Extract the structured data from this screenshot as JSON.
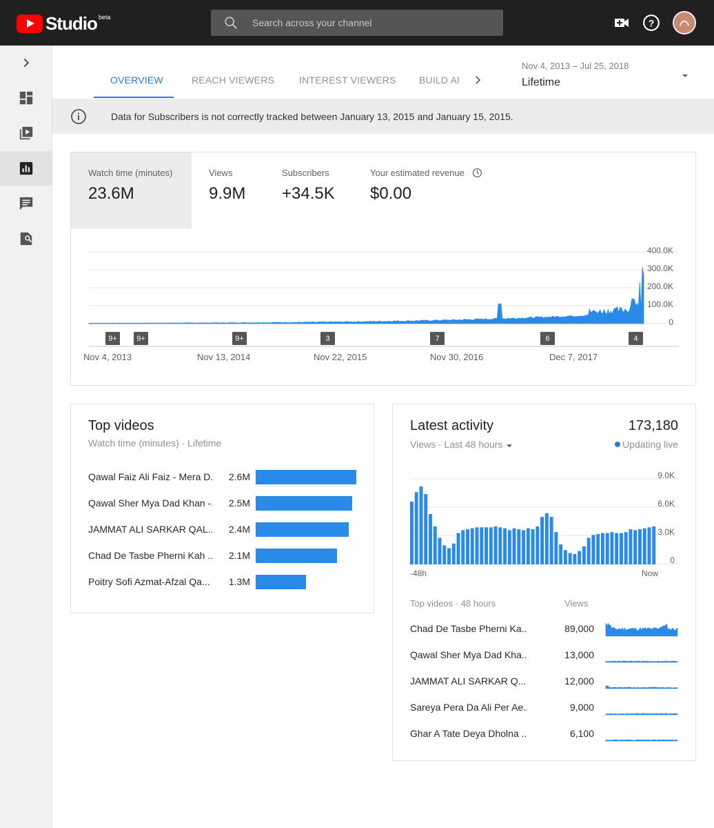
{
  "app": {
    "name": "Studio",
    "badge": "beta"
  },
  "search": {
    "placeholder": "Search across your channel"
  },
  "tabs": [
    "OVERVIEW",
    "REACH VIEWERS",
    "INTEREST VIEWERS",
    "BUILD AN"
  ],
  "date_range": {
    "range": "Nov 4, 2013 – Jul 25, 2018",
    "label": "Lifetime"
  },
  "banner": {
    "text": "Data for Subscribers is not correctly tracked between January 13, 2015 and January 15, 2015."
  },
  "metrics": [
    {
      "label": "Watch time (minutes)",
      "value": "23.6M"
    },
    {
      "label": "Views",
      "value": "9.9M"
    },
    {
      "label": "Subscribers",
      "value": "+34.5K"
    },
    {
      "label": "Your estimated revenue",
      "value": "$0.00"
    }
  ],
  "main_chart": {
    "y_ticks": [
      "400.0K",
      "300.0K",
      "200.0K",
      "100.0K",
      "0"
    ],
    "x_ticks": [
      "Nov 4, 2013",
      "Nov 13, 2014",
      "Nov 22, 2015",
      "Nov 30, 2016",
      "Dec 7, 2017"
    ],
    "markers": [
      "9+",
      "9+",
      "9+",
      "3",
      "7",
      "6",
      "4"
    ]
  },
  "top_videos": {
    "title": "Top videos",
    "subtitle": "Watch time (minutes) · Lifetime",
    "rows": [
      {
        "title": "Qawal Faiz Ali Faiz - Mera D...",
        "value": "2.6M",
        "num": 2.6
      },
      {
        "title": "Qawal Sher Mya Dad Khan -...",
        "value": "2.5M",
        "num": 2.5
      },
      {
        "title": "JAMMAT ALI SARKAR QAL...",
        "value": "2.4M",
        "num": 2.4
      },
      {
        "title": "Chad De Tasbe Pherni Kah ...",
        "value": "2.1M",
        "num": 2.1
      },
      {
        "title": "Poitry Sofi Azmat-Afzal Qa...",
        "value": "1.3M",
        "num": 1.3
      }
    ]
  },
  "latest": {
    "title": "Latest activity",
    "total": "173,180",
    "subtitle": "Views · Last 48 hours",
    "live": "Updating live",
    "y_ticks": [
      "9.0K",
      "6.0K",
      "3.0K",
      "0"
    ],
    "x_start": "-48h",
    "x_end": "Now",
    "bars": [
      6.6,
      7.6,
      8.2,
      7.4,
      5.3,
      4.0,
      2.8,
      2.0,
      1.7,
      2.2,
      3.3,
      3.6,
      3.7,
      3.8,
      3.9,
      3.9,
      3.9,
      3.9,
      4.0,
      3.9,
      3.8,
      3.6,
      3.8,
      3.7,
      3.6,
      3.8,
      3.7,
      4.0,
      5.0,
      5.4,
      5.0,
      3.4,
      2.1,
      1.5,
      1.2,
      1.1,
      1.4,
      1.9,
      2.8,
      3.1,
      3.2,
      3.3,
      3.3,
      3.4,
      3.3,
      3.3,
      3.4,
      3.7,
      3.6,
      3.7,
      3.8,
      3.9,
      4.0
    ],
    "table_header": {
      "col1": "Top videos · 48 hours",
      "col2": "Views"
    },
    "rows": [
      {
        "title": "Chad De Tasbe Pherni Ka...",
        "value": "89,000"
      },
      {
        "title": "Qawal Sher Mya Dad Kha...",
        "value": "13,000"
      },
      {
        "title": "JAMMAT ALI SARKAR Q...",
        "value": "12,000"
      },
      {
        "title": "Sareya Pera Da Ali Per Ae...",
        "value": "9,000"
      },
      {
        "title": "Ghar A Tate Deya Dholna ...",
        "value": "6,100"
      }
    ]
  },
  "colors": {
    "accent": "#1e7de0",
    "bar": "#2a8ae8",
    "topbar": "#202020"
  }
}
